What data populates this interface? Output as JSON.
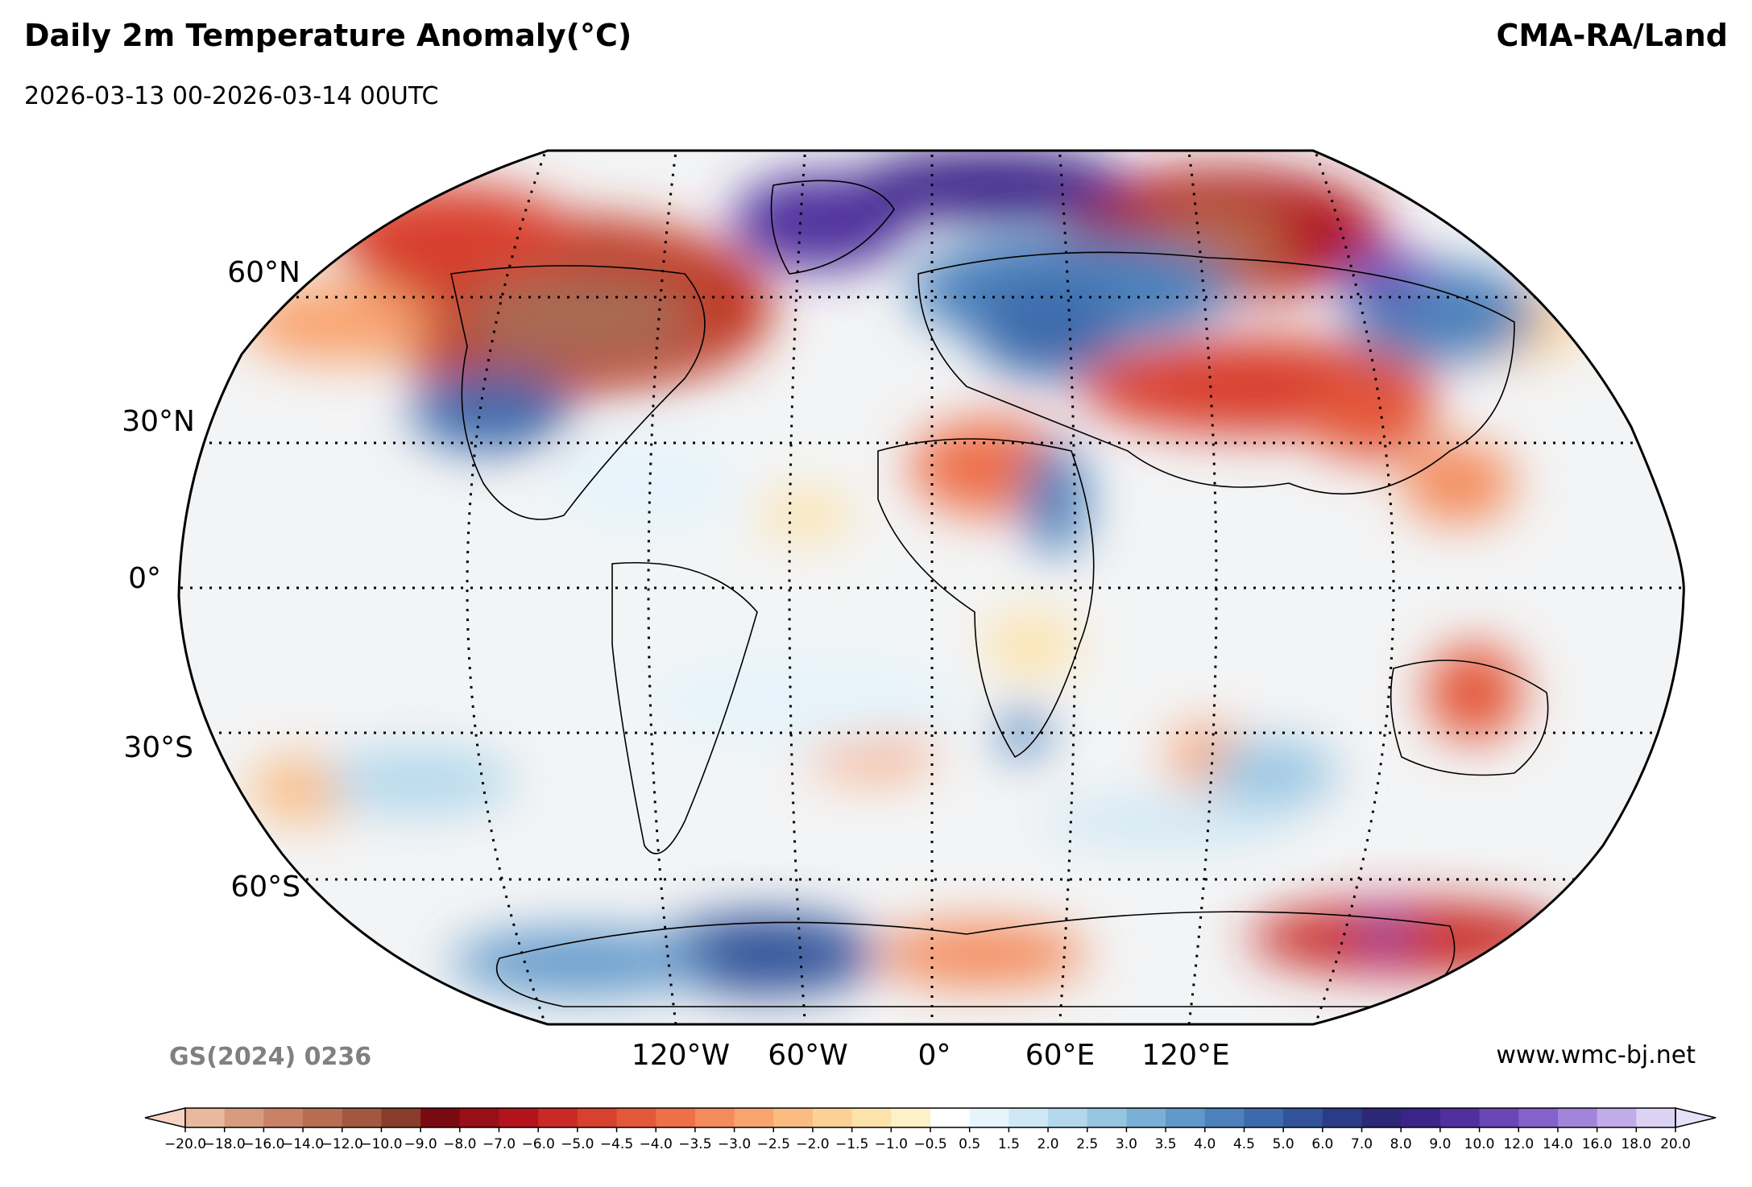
{
  "title": "Daily 2m Temperature Anomaly(°C)",
  "subtitle": "2026-03-13 00-2026-03-14 00UTC",
  "source": "CMA-RA/Land",
  "map_code": "GS(2024) 0236",
  "website": "www.wmc-bj.net",
  "projection": "Robinson",
  "lat_labels": [
    "60°N",
    "30°N",
    "0°",
    "30°S",
    "60°S"
  ],
  "lon_labels": [
    "120°W",
    "60°W",
    "0°",
    "60°E",
    "120°E"
  ],
  "colorbar": {
    "ticks": [
      "−20.0",
      "−18.0",
      "−16.0",
      "−14.0",
      "−12.0",
      "−10.0",
      "−9.0",
      "−8.0",
      "−7.0",
      "−6.0",
      "−5.0",
      "−4.5",
      "−4.0",
      "−3.5",
      "−3.0",
      "−2.5",
      "−2.0",
      "−1.5",
      "−1.0",
      "−0.5",
      "0.5",
      "1.5",
      "2.0",
      "2.5",
      "3.0",
      "3.5",
      "4.0",
      "4.5",
      "5.0",
      "6.0",
      "7.0",
      "8.0",
      "9.0",
      "10.0",
      "12.0",
      "14.0",
      "16.0",
      "18.0",
      "20.0"
    ],
    "colors": [
      "#e9b99d",
      "#d99b80",
      "#c98266",
      "#b86d50",
      "#a35740",
      "#8a3c2a",
      "#7a0a12",
      "#980f18",
      "#b3141c",
      "#c92a25",
      "#d9412f",
      "#e4583a",
      "#ee6f48",
      "#f48b5b",
      "#f9a46f",
      "#fbbc82",
      "#fcd196",
      "#fde3ab",
      "#fdf2c7",
      "#ffffff",
      "#e6f4fb",
      "#cfe8f5",
      "#b3d8ec",
      "#96c5e2",
      "#7ab0d6",
      "#6198ca",
      "#4c81bc",
      "#3d6aac",
      "#32539a",
      "#2a3c87",
      "#2c2776",
      "#3a2488",
      "#50309e",
      "#6a46b6",
      "#8461cb",
      "#a284db",
      "#c2abe9",
      "#dcd3f4"
    ],
    "extend_low_color": "#f6d4c4",
    "extend_high_color": "#e6e0f8"
  }
}
